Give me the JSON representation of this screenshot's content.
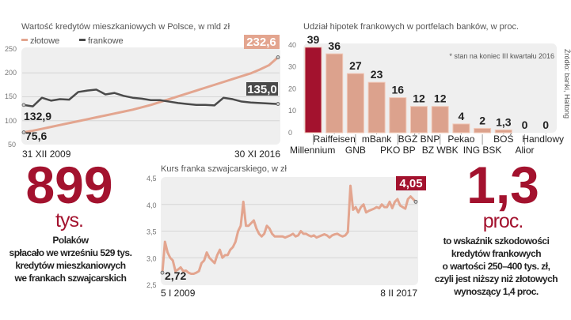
{
  "colors": {
    "zlotowe": "#e3a58f",
    "frankowe": "#4a4a4a",
    "accent": "#a3122e",
    "bar": "#dca28d",
    "plot_bg": "#efefef"
  },
  "chart_data": [
    {
      "type": "line",
      "title": "Wartość kredytów mieszkaniowych w Polsce, w mld zł",
      "ylim": [
        50,
        250
      ],
      "yticks": [
        "250",
        "200",
        "150",
        "100",
        "50"
      ],
      "x_start_label": "31 XII 2009",
      "x_end_label": "30 XI 2016",
      "grid": true,
      "legend": "top-left",
      "series": [
        {
          "name": "złotowe",
          "start_label": "75,6",
          "end_label": "232,6",
          "values": [
            75.6,
            79,
            83,
            87,
            91,
            95,
            99,
            103,
            107,
            111,
            115,
            119,
            123,
            128,
            133,
            139,
            145,
            151,
            157,
            163,
            169,
            175,
            181,
            187,
            193,
            199,
            207,
            216,
            232.6
          ]
        },
        {
          "name": "frankowe",
          "start_label": "132,9",
          "end_label": "135,0",
          "values": [
            132.9,
            130,
            148,
            142,
            145,
            144,
            160,
            163,
            165,
            155,
            158,
            152,
            148,
            146,
            143,
            143,
            140,
            137,
            135,
            133,
            133,
            132,
            148,
            145,
            140,
            138,
            137,
            136,
            135.0
          ]
        }
      ]
    },
    {
      "type": "bar",
      "title": "Udział hipotek frankowych w portfelach banków, w proc.",
      "note": "* stan na koniec III kwartału 2016",
      "source": "Źródło: banki, Haitong",
      "ylim": [
        0,
        40
      ],
      "yticks": [
        "40",
        "30",
        "20",
        "10",
        "0"
      ],
      "categories": [
        "Millennium",
        "Raiffeisen",
        "GNB",
        "mBank",
        "PKO BP",
        "BGŻ BNP",
        "BZ WBK",
        "Pekao",
        "ING BSK",
        "BOŚ",
        "Alior",
        "Handlowy"
      ],
      "values": [
        39,
        36,
        27,
        23,
        16,
        12,
        12,
        4,
        2,
        1.3,
        0,
        0
      ],
      "value_labels": [
        "39",
        "36",
        "27",
        "23",
        "16",
        "12",
        "12",
        "4",
        "2",
        "1,3",
        "0",
        "0"
      ],
      "highlight": "Millennium"
    },
    {
      "type": "line",
      "title": "Kurs franka szwajcarskiego, w zł",
      "ylim": [
        2.5,
        4.5
      ],
      "yticks": [
        "4,5",
        "4,0",
        "3,5",
        "3,0",
        "2,5"
      ],
      "x_start_label": "5 I 2009",
      "x_end_label": "8 II 2017",
      "start_label": "2,72",
      "end_label": "4,05",
      "grid": true,
      "values": [
        2.72,
        3.3,
        3.1,
        3.0,
        2.95,
        2.75,
        2.78,
        2.82,
        2.75,
        2.76,
        2.72,
        2.7,
        2.7,
        2.72,
        2.75,
        2.9,
        2.95,
        3.1,
        3.0,
        2.95,
        2.9,
        3.05,
        3.15,
        3.0,
        3.05,
        3.05,
        3.15,
        3.2,
        3.3,
        3.5,
        3.6,
        4.05,
        3.6,
        3.6,
        3.65,
        3.7,
        3.55,
        3.45,
        3.4,
        3.45,
        3.6,
        3.55,
        3.45,
        3.4,
        3.4,
        3.4,
        3.4,
        3.38,
        3.4,
        3.42,
        3.45,
        3.4,
        3.42,
        3.5,
        3.45,
        3.45,
        3.42,
        3.4,
        3.42,
        3.38,
        3.4,
        3.42,
        3.44,
        3.42,
        3.38,
        3.42,
        3.44,
        3.45,
        3.42,
        3.4,
        3.42,
        3.48,
        4.35,
        3.9,
        3.95,
        3.85,
        3.95,
        4.0,
        3.85,
        3.88,
        3.9,
        3.92,
        3.95,
        3.93,
        4.0,
        3.95,
        3.95,
        4.05,
        3.93,
        4.05,
        4.1,
        3.98,
        3.95,
        3.92,
        4.1,
        4.15,
        4.1,
        4.05
      ]
    }
  ],
  "stat_left": {
    "number": "899",
    "unit": "tys.",
    "lines": [
      "Polaków",
      "spłacało we wrześniu 529 tys.",
      "kredytów mieszkaniowych",
      "we frankach szwajcarskich"
    ]
  },
  "stat_right": {
    "number": "1,3",
    "unit": "proc.",
    "lines": [
      "to wskaźnik szkodowości",
      "kredytów frankowych",
      "o wartości 250–400 tys. zł,",
      "czyli jest niższy niż złotowych",
      "wynoszący 1,4 proc."
    ]
  }
}
